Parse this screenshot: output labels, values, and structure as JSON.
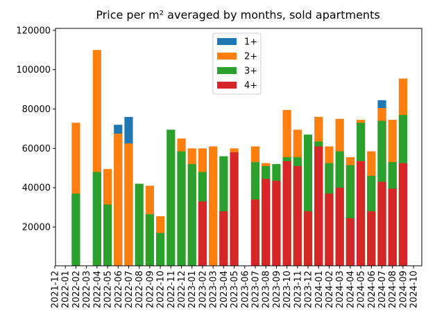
{
  "chart_data": {
    "type": "bar",
    "overlap": true,
    "title": "Price per m² averaged by months, sold apartments",
    "categories": [
      "2021-12",
      "2022-01",
      "2022-02",
      "2022-03",
      "2022-04",
      "2022-05",
      "2022-06",
      "2022-07",
      "2022-08",
      "2022-09",
      "2022-10",
      "2022-11",
      "2022-12",
      "2023-01",
      "2023-02",
      "2023-03",
      "2023-04",
      "2023-05",
      "2023-06",
      "2023-07",
      "2023-08",
      "2023-09",
      "2023-10",
      "2023-11",
      "2023-12",
      "2024-01",
      "2024-02",
      "2024-03",
      "2024-04",
      "2024-05",
      "2024-06",
      "2024-07",
      "2024-08",
      "2024-09",
      "2024-10"
    ],
    "series": [
      {
        "name": "1+",
        "color": "#1f77b4",
        "values": [
          null,
          null,
          null,
          null,
          null,
          null,
          72000,
          76000,
          null,
          null,
          null,
          null,
          null,
          null,
          null,
          null,
          null,
          null,
          null,
          null,
          null,
          null,
          null,
          null,
          null,
          null,
          null,
          null,
          null,
          null,
          null,
          84500,
          null,
          null,
          null
        ]
      },
      {
        "name": "2+",
        "color": "#ff7f0e",
        "values": [
          null,
          null,
          73000,
          null,
          110000,
          49500,
          67500,
          62500,
          null,
          41000,
          25500,
          null,
          65000,
          60000,
          60000,
          61000,
          null,
          60000,
          null,
          61000,
          52500,
          null,
          79500,
          69500,
          null,
          76000,
          61000,
          75000,
          55500,
          74500,
          58500,
          80500,
          74500,
          95500,
          null
        ]
      },
      {
        "name": "3+",
        "color": "#2ca02c",
        "values": [
          null,
          null,
          37000,
          null,
          48000,
          31500,
          null,
          null,
          42000,
          26500,
          17000,
          69500,
          58500,
          52000,
          48000,
          null,
          56000,
          null,
          null,
          53000,
          51000,
          52000,
          55500,
          55500,
          67000,
          63500,
          52500,
          58500,
          51500,
          73000,
          46000,
          74000,
          53000,
          77000,
          null
        ]
      },
      {
        "name": "4+",
        "color": "#d62728",
        "values": [
          null,
          null,
          null,
          null,
          null,
          null,
          null,
          null,
          null,
          null,
          null,
          null,
          null,
          null,
          33000,
          null,
          28000,
          58000,
          null,
          34000,
          44500,
          43500,
          53500,
          51000,
          28000,
          61000,
          37000,
          40000,
          24500,
          53500,
          28000,
          43000,
          39500,
          52500,
          null
        ]
      }
    ],
    "ylim": [
      300,
      121000
    ],
    "yticks": [
      20000,
      40000,
      60000,
      80000,
      100000,
      120000
    ],
    "legend": "upper center"
  }
}
